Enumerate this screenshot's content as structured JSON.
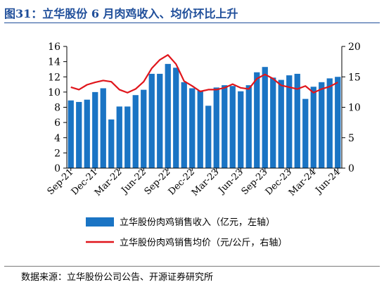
{
  "title": "图31：立华股份 6 月肉鸡收入、均价环比上升",
  "source": "数据来源：立华股份公司公告、开源证券研究所",
  "colors": {
    "bar": "#1a74c4",
    "line": "#e0151b",
    "title": "#1f4e9a"
  },
  "chart_data": {
    "type": "bar",
    "months": [
      "Sep-21",
      "Oct-21",
      "Nov-21",
      "Dec-21",
      "Jan-22",
      "Feb-22",
      "Mar-22",
      "Apr-22",
      "May-22",
      "Jun-22",
      "Jul-22",
      "Aug-22",
      "Sep-22",
      "Oct-22",
      "Nov-22",
      "Dec-22",
      "Jan-23",
      "Feb-23",
      "Mar-23",
      "Apr-23",
      "May-23",
      "Jun-23",
      "Jul-23",
      "Aug-23",
      "Sep-23",
      "Oct-23",
      "Nov-23",
      "Dec-23",
      "Jan-24",
      "Feb-24",
      "Mar-24",
      "Apr-24",
      "May-24",
      "Jun-24"
    ],
    "x_tick_labels": [
      "Sep-21",
      "Dec-21",
      "Mar-22",
      "Jun-22",
      "Sep-22",
      "Dec-22",
      "Mar-23",
      "Jun-23",
      "Sep-23",
      "Dec-23",
      "Mar-24",
      "Jun-24"
    ],
    "series": [
      {
        "name": "立华股份肉鸡销售收入（亿元，左轴）",
        "type": "bar",
        "axis": "left",
        "values": [
          8.9,
          8.7,
          9.0,
          10.0,
          10.5,
          6.4,
          8.1,
          8.1,
          9.6,
          10.3,
          12.4,
          12.4,
          13.7,
          13.2,
          11.3,
          10.5,
          10.2,
          8.2,
          10.6,
          10.9,
          10.8,
          10.1,
          10.9,
          12.6,
          13.3,
          11.9,
          11.6,
          12.2,
          12.4,
          9.1,
          10.7,
          11.3,
          11.8,
          12.0
        ]
      },
      {
        "name": "立华股份肉鸡销售均价（元/公斤，右轴）",
        "type": "line",
        "axis": "right",
        "values": [
          13.3,
          12.9,
          13.7,
          14.1,
          14.4,
          14.2,
          12.9,
          12.4,
          13.0,
          14.2,
          16.4,
          17.8,
          18.6,
          17.1,
          14.3,
          13.5,
          12.6,
          12.9,
          12.9,
          13.2,
          13.8,
          13.2,
          13.0,
          14.7,
          15.4,
          14.7,
          13.6,
          13.3,
          13.0,
          13.5,
          12.4,
          13.0,
          13.4,
          14.1
        ]
      }
    ],
    "y_left": {
      "min": 0,
      "max": 16,
      "ticks": [
        0,
        2,
        4,
        6,
        8,
        10,
        12,
        14,
        16
      ]
    },
    "y_right": {
      "min": 0,
      "max": 20,
      "ticks": [
        0,
        5,
        10,
        15,
        20
      ]
    },
    "legend_position": "bottom"
  }
}
